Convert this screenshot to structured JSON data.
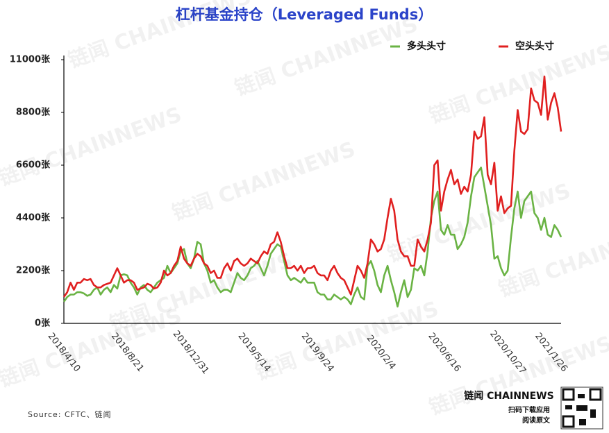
{
  "chart_data": {
    "type": "line",
    "title": "杠杆基金持仓（Leveraged Funds）",
    "source": "Source: CFTC、链闻",
    "watermark": "链闻 CHAINNEWS",
    "brand": {
      "name": "链闻 CHAINNEWS",
      "line1": "扫码下载应用",
      "line2": "阅读原文"
    },
    "categories": [
      "2018/4/10",
      null,
      null,
      null,
      null,
      null,
      null,
      null,
      null,
      null,
      null,
      null,
      null,
      null,
      null,
      null,
      null,
      null,
      null,
      "2018/8/21",
      null,
      null,
      null,
      null,
      null,
      null,
      null,
      null,
      null,
      null,
      null,
      null,
      null,
      null,
      null,
      null,
      null,
      null,
      "2018/12/31",
      null,
      null,
      null,
      null,
      null,
      null,
      null,
      null,
      null,
      null,
      null,
      null,
      null,
      null,
      null,
      null,
      null,
      null,
      "2019/5/14",
      null,
      null,
      null,
      null,
      null,
      null,
      null,
      null,
      null,
      null,
      null,
      null,
      null,
      null,
      null,
      null,
      null,
      null,
      "2019/9/24",
      null,
      null,
      null,
      null,
      null,
      null,
      null,
      null,
      null,
      null,
      null,
      null,
      null,
      null,
      null,
      null,
      null,
      null,
      "2020/2/4",
      null,
      null,
      null,
      null,
      null,
      null,
      null,
      null,
      null,
      null,
      null,
      null,
      null,
      null,
      null,
      null,
      null,
      null,
      "2020/6/16",
      null,
      null,
      null,
      null,
      null,
      null,
      null,
      null,
      null,
      null,
      null,
      null,
      null,
      null,
      null,
      null,
      null,
      null,
      "2020/10/27",
      null,
      null,
      null,
      null,
      null,
      null,
      null,
      null,
      null,
      null,
      null,
      null,
      "2021/1/26",
      null,
      null,
      null
    ],
    "series": [
      {
        "name": "多头头寸",
        "color": "#6ab344",
        "values": [
          900,
          1100,
          1200,
          1200,
          1300,
          1300,
          1250,
          1150,
          1200,
          1400,
          1500,
          1200,
          1400,
          1500,
          1300,
          1600,
          1450,
          2000,
          2050,
          2000,
          1700,
          1500,
          1200,
          1500,
          1600,
          1400,
          1300,
          1500,
          1700,
          1800,
          1900,
          2400,
          2100,
          2300,
          2500,
          3000,
          3100,
          2500,
          2300,
          2700,
          3400,
          3300,
          2500,
          2200,
          1700,
          1800,
          1500,
          1300,
          1400,
          1400,
          1300,
          1700,
          2100,
          1900,
          1800,
          2000,
          2300,
          2400,
          2600,
          2300,
          2000,
          2400,
          2900,
          3100,
          3300,
          3200,
          2600,
          2000,
          1800,
          1900,
          1800,
          1700,
          1900,
          1700,
          1700,
          1700,
          1300,
          1200,
          1200,
          1000,
          1000,
          1200,
          1100,
          1000,
          1100,
          1000,
          800,
          1200,
          1500,
          1100,
          1000,
          2400,
          2600,
          2200,
          1600,
          1300,
          2000,
          2400,
          1800,
          1300,
          700,
          1300,
          1800,
          1100,
          1400,
          2300,
          2200,
          2400,
          2000,
          3000,
          4400,
          5100,
          5500,
          3900,
          3700,
          4100,
          3700,
          3700,
          3100,
          3300,
          3600,
          4200,
          5300,
          6100,
          6300,
          6500,
          5700,
          4900,
          4100,
          2700,
          2800,
          2300,
          2000,
          2200,
          3600,
          4800,
          5500,
          4400,
          5100,
          5300,
          5500,
          4600,
          4400,
          3900,
          4400,
          3700,
          3600,
          4100,
          3900,
          3600
        ]
      },
      {
        "name": "空头头寸",
        "color": "#e02020",
        "values": [
          1100,
          1300,
          1700,
          1400,
          1700,
          1700,
          1850,
          1800,
          1850,
          1600,
          1500,
          1500,
          1600,
          1650,
          1700,
          2000,
          2300,
          2000,
          1700,
          1800,
          1800,
          1700,
          1400,
          1450,
          1500,
          1650,
          1600,
          1450,
          1500,
          1700,
          2200,
          2000,
          2100,
          2400,
          2600,
          3200,
          2700,
          2500,
          2400,
          2700,
          2900,
          2800,
          2500,
          2400,
          2100,
          2200,
          1900,
          1900,
          2300,
          2500,
          2200,
          2600,
          2700,
          2500,
          2400,
          2500,
          2700,
          2600,
          2500,
          2800,
          3000,
          2900,
          3300,
          3400,
          3800,
          3400,
          2800,
          2300,
          2300,
          2400,
          2200,
          2400,
          2100,
          2300,
          2300,
          2400,
          2100,
          2000,
          2000,
          1800,
          2200,
          2400,
          2100,
          1900,
          1800,
          1500,
          1200,
          1800,
          2400,
          2200,
          1900,
          2500,
          3500,
          3300,
          3000,
          3100,
          3500,
          4400,
          5200,
          4700,
          3500,
          3000,
          2800,
          2800,
          2400,
          2400,
          3500,
          3200,
          3000,
          3500,
          4200,
          6600,
          6800,
          4700,
          5500,
          6000,
          6400,
          5800,
          6000,
          5400,
          5700,
          5500,
          6200,
          8000,
          7700,
          7800,
          8600,
          6200,
          5800,
          6700,
          4700,
          5300,
          4600,
          4800,
          4900,
          7200,
          8900,
          8000,
          7900,
          8100,
          9800,
          9300,
          9200,
          8700,
          10300,
          8500,
          9200,
          9600,
          9000,
          8000
        ]
      }
    ],
    "ylim": [
      0,
      11000
    ],
    "yticks": [
      {
        "value": 0,
        "label": "0张"
      },
      {
        "value": 2200,
        "label": "2200张"
      },
      {
        "value": 4400,
        "label": "4400张"
      },
      {
        "value": 6600,
        "label": "6600张"
      },
      {
        "value": 8800,
        "label": "8800张"
      },
      {
        "value": 11000,
        "label": "11000张"
      }
    ],
    "grid": false
  }
}
